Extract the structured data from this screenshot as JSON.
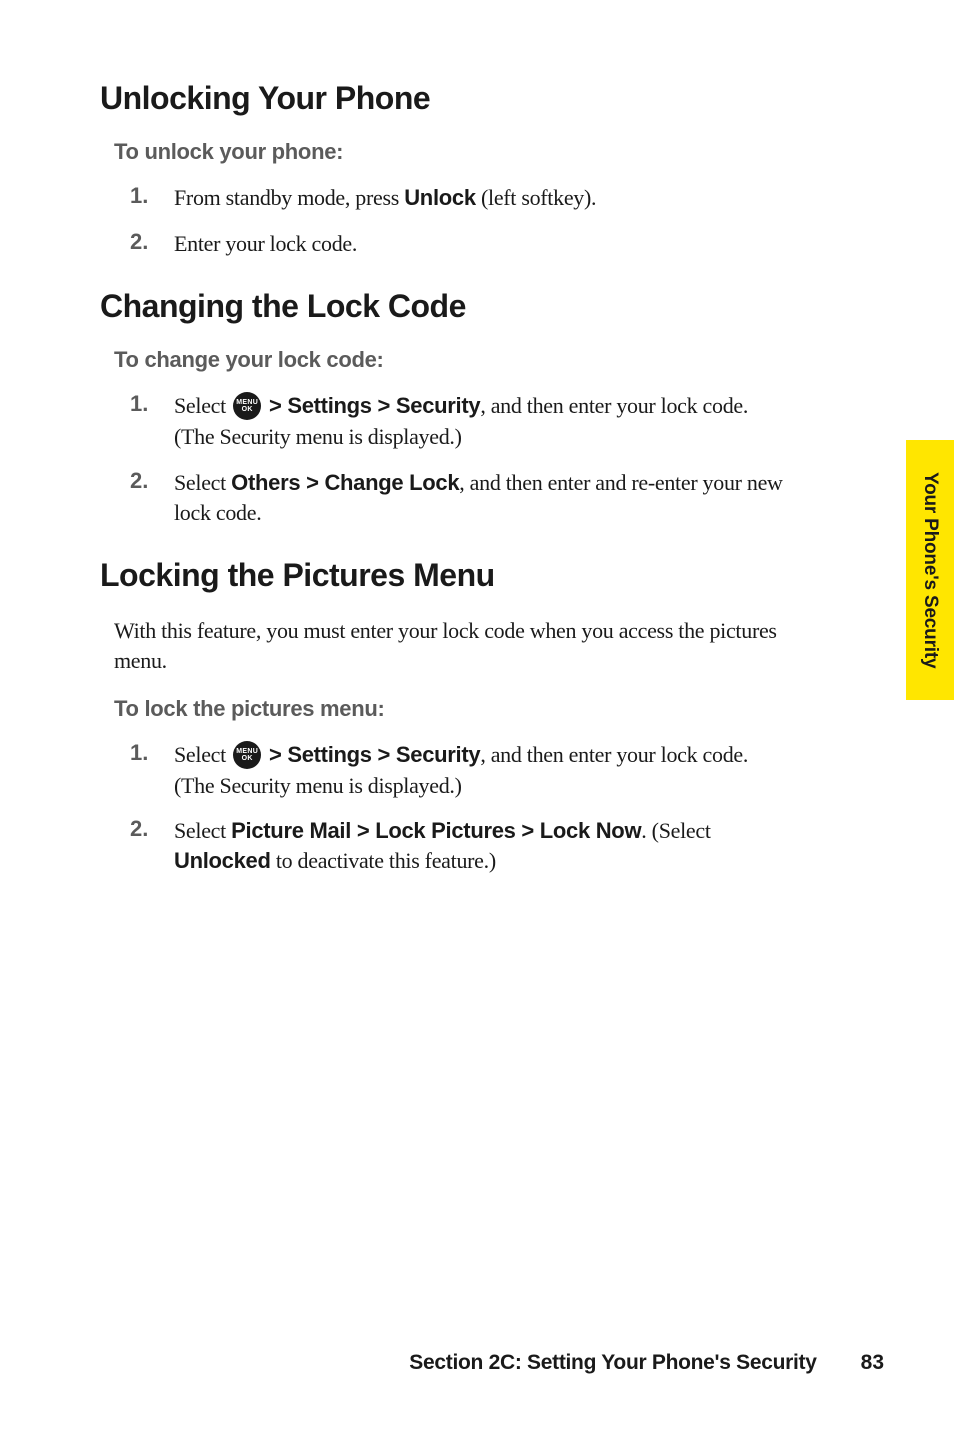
{
  "sideTab": {
    "label": "Your Phone's Security",
    "bg": "#ffe600"
  },
  "footer": {
    "title": "Section 2C: Setting Your Phone's Security",
    "page": "83"
  },
  "icon": {
    "top": "MENU",
    "bottom": "OK"
  },
  "sections": {
    "unlock": {
      "heading": "Unlocking Your Phone",
      "sub": "To unlock your phone:",
      "steps": [
        {
          "n": "1.",
          "pre": "From standby mode, press ",
          "b1": "Unlock",
          "post1": " (left softkey)."
        },
        {
          "n": "2.",
          "pre": "Enter your lock code."
        }
      ]
    },
    "changeLock": {
      "heading": "Changing the Lock Code",
      "sub": "To change your lock code:",
      "steps": [
        {
          "n": "1.",
          "pre": "Select ",
          "icon": true,
          "b1": " > Settings > Security",
          "post1": ", and then enter your lock code. (The Security menu is displayed.)"
        },
        {
          "n": "2.",
          "pre": "Select ",
          "b1": "Others > Change Lock",
          "post1": ", and then enter and re-enter your new lock code."
        }
      ]
    },
    "lockPics": {
      "heading": "Locking the Pictures Menu",
      "intro": "With this feature, you must enter your lock code when you access the pictures menu.",
      "sub": "To lock the pictures menu:",
      "steps": [
        {
          "n": "1.",
          "pre": "Select ",
          "icon": true,
          "b1": " > Settings > Security",
          "post1": ", and then enter your lock code. (The Security menu is displayed.)"
        },
        {
          "n": "2.",
          "pre": "Select ",
          "b1": "Picture Mail > Lock Pictures > Lock Now",
          "post1": ". (Select ",
          "b2": "Unlocked",
          "post2": " to deactivate this feature.)"
        }
      ]
    }
  }
}
